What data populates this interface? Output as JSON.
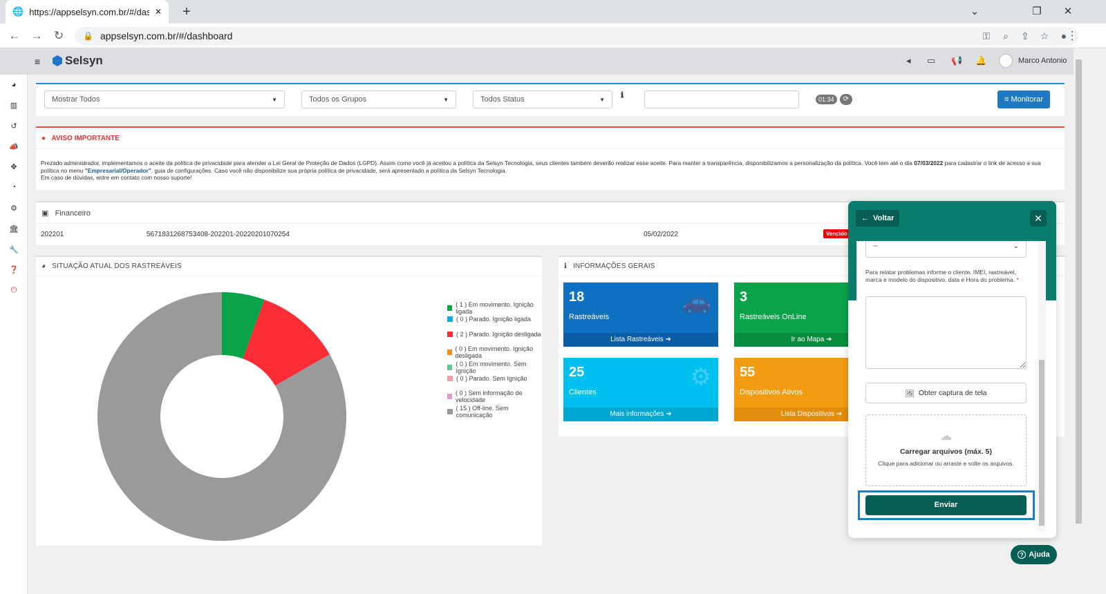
{
  "browser": {
    "tab_title": "https://appselsyn.com.br/#/dashb",
    "url": "appselsyn.com.br/#/dashboard"
  },
  "header": {
    "brand": "Selsyn",
    "user_name": "Marco Antonio"
  },
  "filters": {
    "show": "Mostrar Todos",
    "groups": "Todos os Grupos",
    "status": "Todos Status",
    "search_value": "",
    "timer": "01:34",
    "monitor_button": "Monitorar"
  },
  "notice": {
    "title": "AVISO IMPORTANTE",
    "text_1": "Prezado administrador, implementamos o aceite da política de privacidade para atender a Lei Geral de Proteção de Dados (LGPD). Assim como você já aceitou a política da Selsyn Tecnologia, seus clientes também deverão realizar esse aceite. Para manter a transparência, disponibilizamos a personalização da política. Você tem até o dia ",
    "deadline": "07/03/2022",
    "text_2": " para cadastrar o link de acesso a sua política no menu ",
    "menu_link": "\"Empresarial/Operador\"",
    "text_3": ", guia de configurações. Caso você não disponibilize sua própria política de privacidade, será apresentado a política da Selsyn Tecnologia.",
    "text_4": "Em caso de dúvidas, entre em contato com nosso suporte!"
  },
  "financeiro": {
    "title": "Financeiro",
    "ref": "202201",
    "code": "5671831268753408-202201-20220201070254",
    "date": "05/02/2022",
    "status": "Vencido"
  },
  "situacao": {
    "title": "SITUAÇÃO ATUAL DOS RASTREÁVEIS",
    "legend": [
      {
        "label": "( 1 ) Em movimento. Ignição ligada",
        "color": "#0aa34a"
      },
      {
        "label": "( 0 ) Parado. Ignição ligada",
        "color": "#0fa8e8"
      },
      {
        "label": "( 2 ) Parado. Ignição desligada",
        "color": "#fa2c36"
      },
      {
        "label": "( 0 ) Em movimento. Ignição desligada",
        "color": "#f28c1b"
      },
      {
        "label": "( 0 ) Em movimento. Sem Ignição",
        "color": "#5fc98e"
      },
      {
        "label": "( 0 ) Parado. Sem Ignição",
        "color": "#f29ca8"
      },
      {
        "label": "( 0 ) Sem informação de velocidade",
        "color": "#d89ad1"
      },
      {
        "label": "( 15 ) Off-line. Sem comunicação",
        "color": "#9a9a9a"
      }
    ]
  },
  "chart_data": {
    "type": "pie",
    "categories": [
      "Em movimento. Ignição ligada",
      "Parado. Ignição ligada",
      "Parado. Ignição desligada",
      "Em movimento. Ignição desligada",
      "Em movimento. Sem Ignição",
      "Parado. Sem Ignição",
      "Sem informação de velocidade",
      "Off-line. Sem comunicação"
    ],
    "values": [
      1,
      0,
      2,
      0,
      0,
      0,
      0,
      15
    ],
    "colors": [
      "#0aa34a",
      "#0fa8e8",
      "#fa2c36",
      "#f28c1b",
      "#5fc98e",
      "#f29ca8",
      "#d89ad1",
      "#9a9a9a"
    ],
    "donut": true,
    "legend": "right"
  },
  "info": {
    "title": "INFORMAÇÕES GERAIS",
    "cards": [
      {
        "num": "18",
        "label": "Rastreáveis",
        "footer": "Lista Rastreáveis",
        "color": "#1070c0",
        "foot": "#0b5ea5",
        "icon": "car-icon"
      },
      {
        "num": "3",
        "label": "Rastreáveis OnLine",
        "footer": "Ir ao Mapa",
        "color": "#0aa34a",
        "foot": "#088c3e",
        "icon": "globe-icon"
      },
      {
        "num": "25",
        "label": "Clientes",
        "footer": "Mais informações",
        "color": "#00c0ef",
        "foot": "#00a7d0",
        "icon": "gears-icon"
      },
      {
        "num": "55",
        "label": "Dispositivos Ativos",
        "footer": "Lista Dispositivos",
        "color": "#f39c12",
        "foot": "#e08e0b",
        "icon": "chip-icon"
      }
    ]
  },
  "chat": {
    "back": "Voltar",
    "select_value": "--",
    "help_text": "Para relatar problemas informe o cliente, IMEI, rastreável, marca e modelo do dispositivo, data e Hora do problema.",
    "required_mark": "*",
    "capture": "Obter captura de tela",
    "upload_title": "Carregar arquivos (máx. 5)",
    "upload_hint": "Clique para adicionar ou arraste e solte os arquivos.",
    "submit": "Enviar"
  },
  "help_button": "Ajuda"
}
